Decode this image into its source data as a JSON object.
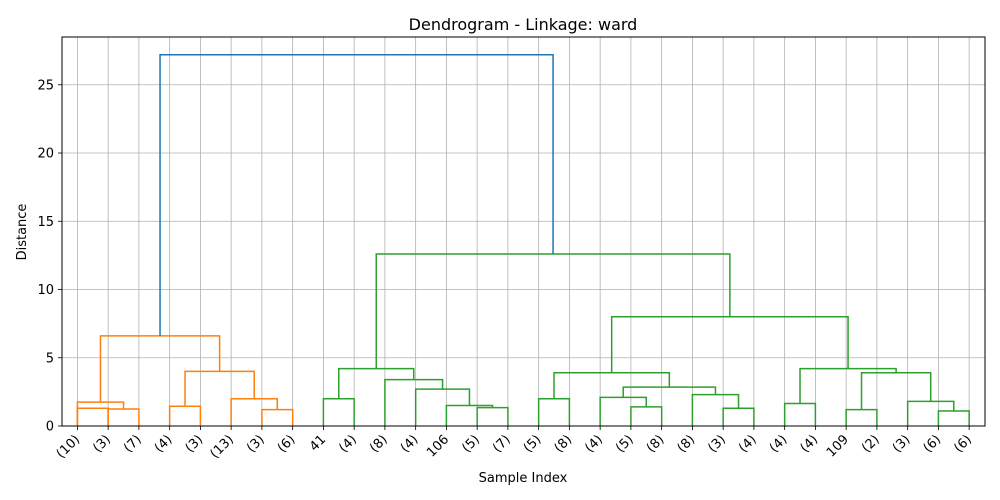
{
  "chart_data": {
    "type": "dendrogram",
    "title": "Dendrogram - Linkage: ward",
    "xlabel": "Sample Index",
    "ylabel": "Distance",
    "ylim": [
      0,
      28.5
    ],
    "yticks": [
      0,
      5,
      10,
      15,
      20,
      25
    ],
    "grid": true,
    "leaves": [
      "(10)",
      "(3)",
      "(7)",
      "(4)",
      "(3)",
      "(13)",
      "(3)",
      "(6)",
      "41",
      "(4)",
      "(8)",
      "(4)",
      "106",
      "(5)",
      "(7)",
      "(5)",
      "(8)",
      "(4)",
      "(5)",
      "(8)",
      "(8)",
      "(3)",
      "(4)",
      "(4)",
      "(4)",
      "109",
      "(2)",
      "(3)",
      "(6)",
      "(6)"
    ],
    "colors": {
      "orange": "#ff7f0e",
      "green": "#2ca02c",
      "blue": "#1f77b4",
      "grid": "#b0b0b0"
    },
    "links": [
      {
        "l": 0,
        "r": 1,
        "h": 1.3,
        "ly": 0,
        "ry": 0,
        "c": "orange"
      },
      {
        "l": -1,
        "r": 2,
        "h": 1.25,
        "ly": 0,
        "ry": 0,
        "c": "orange",
        "ll": 1,
        "lr": 2
      },
      {
        "ll": 0,
        "lr": 1.5,
        "h": 1.75,
        "ly": 0,
        "ry": 1.25,
        "c": "orange"
      },
      {
        "ll": 3,
        "lr": 4,
        "h": 1.45,
        "ly": 0,
        "ry": 0,
        "c": "orange"
      },
      {
        "ll": 6,
        "lr": 7,
        "h": 1.2,
        "ly": 0,
        "ry": 0,
        "c": "orange"
      },
      {
        "ll": 5,
        "lr": 6.5,
        "h": 2.0,
        "ly": 0,
        "ry": 1.2,
        "c": "orange"
      },
      {
        "ll": 3.5,
        "lr": 5.75,
        "h": 4.0,
        "ly": 1.45,
        "ry": 2.0,
        "c": "orange"
      },
      {
        "ll": 0.75,
        "lr": 4.625,
        "h": 6.6,
        "ly": 1.75,
        "ry": 4.0,
        "c": "orange"
      },
      {
        "ll": 8,
        "lr": 9,
        "h": 2.0,
        "ly": 0,
        "ry": 0,
        "c": "green"
      },
      {
        "ll": 13,
        "lr": 14,
        "h": 1.35,
        "ly": 0,
        "ry": 0,
        "c": "green"
      },
      {
        "ll": 12,
        "lr": 13.5,
        "h": 1.5,
        "ly": 0,
        "ry": 1.35,
        "c": "green"
      },
      {
        "ll": 11,
        "lr": 12.75,
        "h": 2.7,
        "ly": 0,
        "ry": 1.5,
        "c": "green"
      },
      {
        "ll": 10,
        "lr": 11.875,
        "h": 3.4,
        "ly": 0,
        "ry": 2.7,
        "c": "green"
      },
      {
        "ll": 8.5,
        "lr": 10.9375,
        "h": 4.2,
        "ly": 2.0,
        "ry": 3.4,
        "c": "green"
      },
      {
        "ll": 15,
        "lr": 16,
        "h": 2.0,
        "ly": 0,
        "ry": 0,
        "c": "green"
      },
      {
        "ll": 18,
        "lr": 19,
        "h": 1.4,
        "ly": 0,
        "ry": 0,
        "c": "green"
      },
      {
        "ll": 17,
        "lr": 18.5,
        "h": 2.1,
        "ly": 0,
        "ry": 1.4,
        "c": "green"
      },
      {
        "ll": 21,
        "lr": 22,
        "h": 1.3,
        "ly": 0,
        "ry": 0,
        "c": "green"
      },
      {
        "ll": 20,
        "lr": 21.5,
        "h": 2.3,
        "ly": 0,
        "ry": 1.3,
        "c": "green"
      },
      {
        "ll": 17.75,
        "lr": 20.75,
        "h": 2.85,
        "ly": 2.1,
        "ry": 2.3,
        "c": "green"
      },
      {
        "ll": 15.5,
        "lr": 19.25,
        "h": 3.9,
        "ly": 2.0,
        "ry": 2.85,
        "c": "green"
      },
      {
        "ll": 23,
        "lr": 24,
        "h": 1.65,
        "ly": 0,
        "ry": 0,
        "c": "green"
      },
      {
        "ll": 25,
        "lr": 26,
        "h": 1.2,
        "ly": 0,
        "ry": 0,
        "c": "green"
      },
      {
        "ll": 28,
        "lr": 29,
        "h": 1.1,
        "ly": 0,
        "ry": 0,
        "c": "green"
      },
      {
        "ll": 27,
        "lr": 28.5,
        "h": 1.8,
        "ly": 0,
        "ry": 1.1,
        "c": "green"
      },
      {
        "ll": 25.5,
        "lr": 27.75,
        "h": 3.9,
        "ly": 1.2,
        "ry": 1.8,
        "c": "green"
      },
      {
        "ll": 23.5,
        "lr": 26.625,
        "h": 4.2,
        "ly": 1.65,
        "ry": 3.9,
        "c": "green"
      },
      {
        "ll": 17.375,
        "lr": 25.0625,
        "h": 8.0,
        "ly": 3.9,
        "ry": 4.2,
        "c": "green"
      },
      {
        "ll": 9.71875,
        "lr": 21.21875,
        "h": 12.6,
        "ly": 4.2,
        "ry": 8.0,
        "c": "green"
      },
      {
        "ll": 2.6875,
        "lr": 15.46875,
        "h": 27.2,
        "ly": 6.6,
        "ry": 12.6,
        "c": "blue"
      }
    ]
  }
}
